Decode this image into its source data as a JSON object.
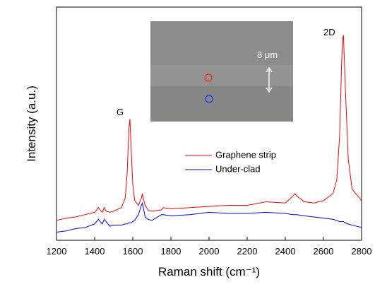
{
  "chart_data": {
    "type": "line",
    "x_label": "Raman shift (cm⁻¹)",
    "y_label": "Intensity (a.u.)",
    "annotations": [
      "G",
      "2D",
      "8 μm"
    ],
    "x": [
      1200,
      1250,
      1300,
      1350,
      1400,
      1420,
      1440,
      1450,
      1460,
      1480,
      1500,
      1540,
      1560,
      1570,
      1580,
      1585,
      1590,
      1600,
      1610,
      1630,
      1645,
      1650,
      1655,
      1665,
      1680,
      1700,
      1750,
      1760,
      1800,
      1900,
      2000,
      2100,
      2200,
      2300,
      2400,
      2440,
      2450,
      2460,
      2500,
      2550,
      2600,
      2650,
      2670,
      2685,
      2695,
      2700,
      2705,
      2715,
      2730,
      2750,
      2800
    ],
    "series": [
      {
        "name": "Graphene strip",
        "color": "#ff0000",
        "values": [
          8.5,
          9.5,
          10,
          11,
          12,
          14,
          12,
          14,
          12.5,
          12,
          12.5,
          14,
          18,
          28,
          48,
          52,
          42,
          24,
          17,
          15,
          18,
          20,
          18,
          15,
          13,
          12.5,
          13,
          14,
          13.5,
          14,
          14.5,
          15,
          15,
          16.5,
          16,
          19,
          20,
          19,
          16.5,
          16,
          17,
          20,
          26,
          45,
          75,
          86,
          88,
          65,
          35,
          22,
          17
        ]
      },
      {
        "name": "Under-clad",
        "color": "#0000ff",
        "values": [
          3.5,
          4,
          5,
          5.5,
          7,
          9,
          7,
          9,
          8,
          6,
          6.5,
          6.5,
          7,
          7,
          7.5,
          7.5,
          7.5,
          8,
          8.5,
          11,
          15,
          16,
          14,
          10,
          9,
          8.5,
          11,
          11,
          10.5,
          11,
          12,
          11.5,
          11.5,
          12,
          11.5,
          11,
          11,
          11,
          10.5,
          10,
          9.5,
          9,
          8.5,
          8,
          8,
          8,
          8,
          7.5,
          7,
          6.5,
          5.5
        ]
      }
    ],
    "xlim": [
      1200,
      2800
    ],
    "xticks": [
      1200,
      1400,
      1600,
      1800,
      2000,
      2200,
      2400,
      2600,
      2800
    ],
    "ylim": [
      0,
      100
    ]
  }
}
